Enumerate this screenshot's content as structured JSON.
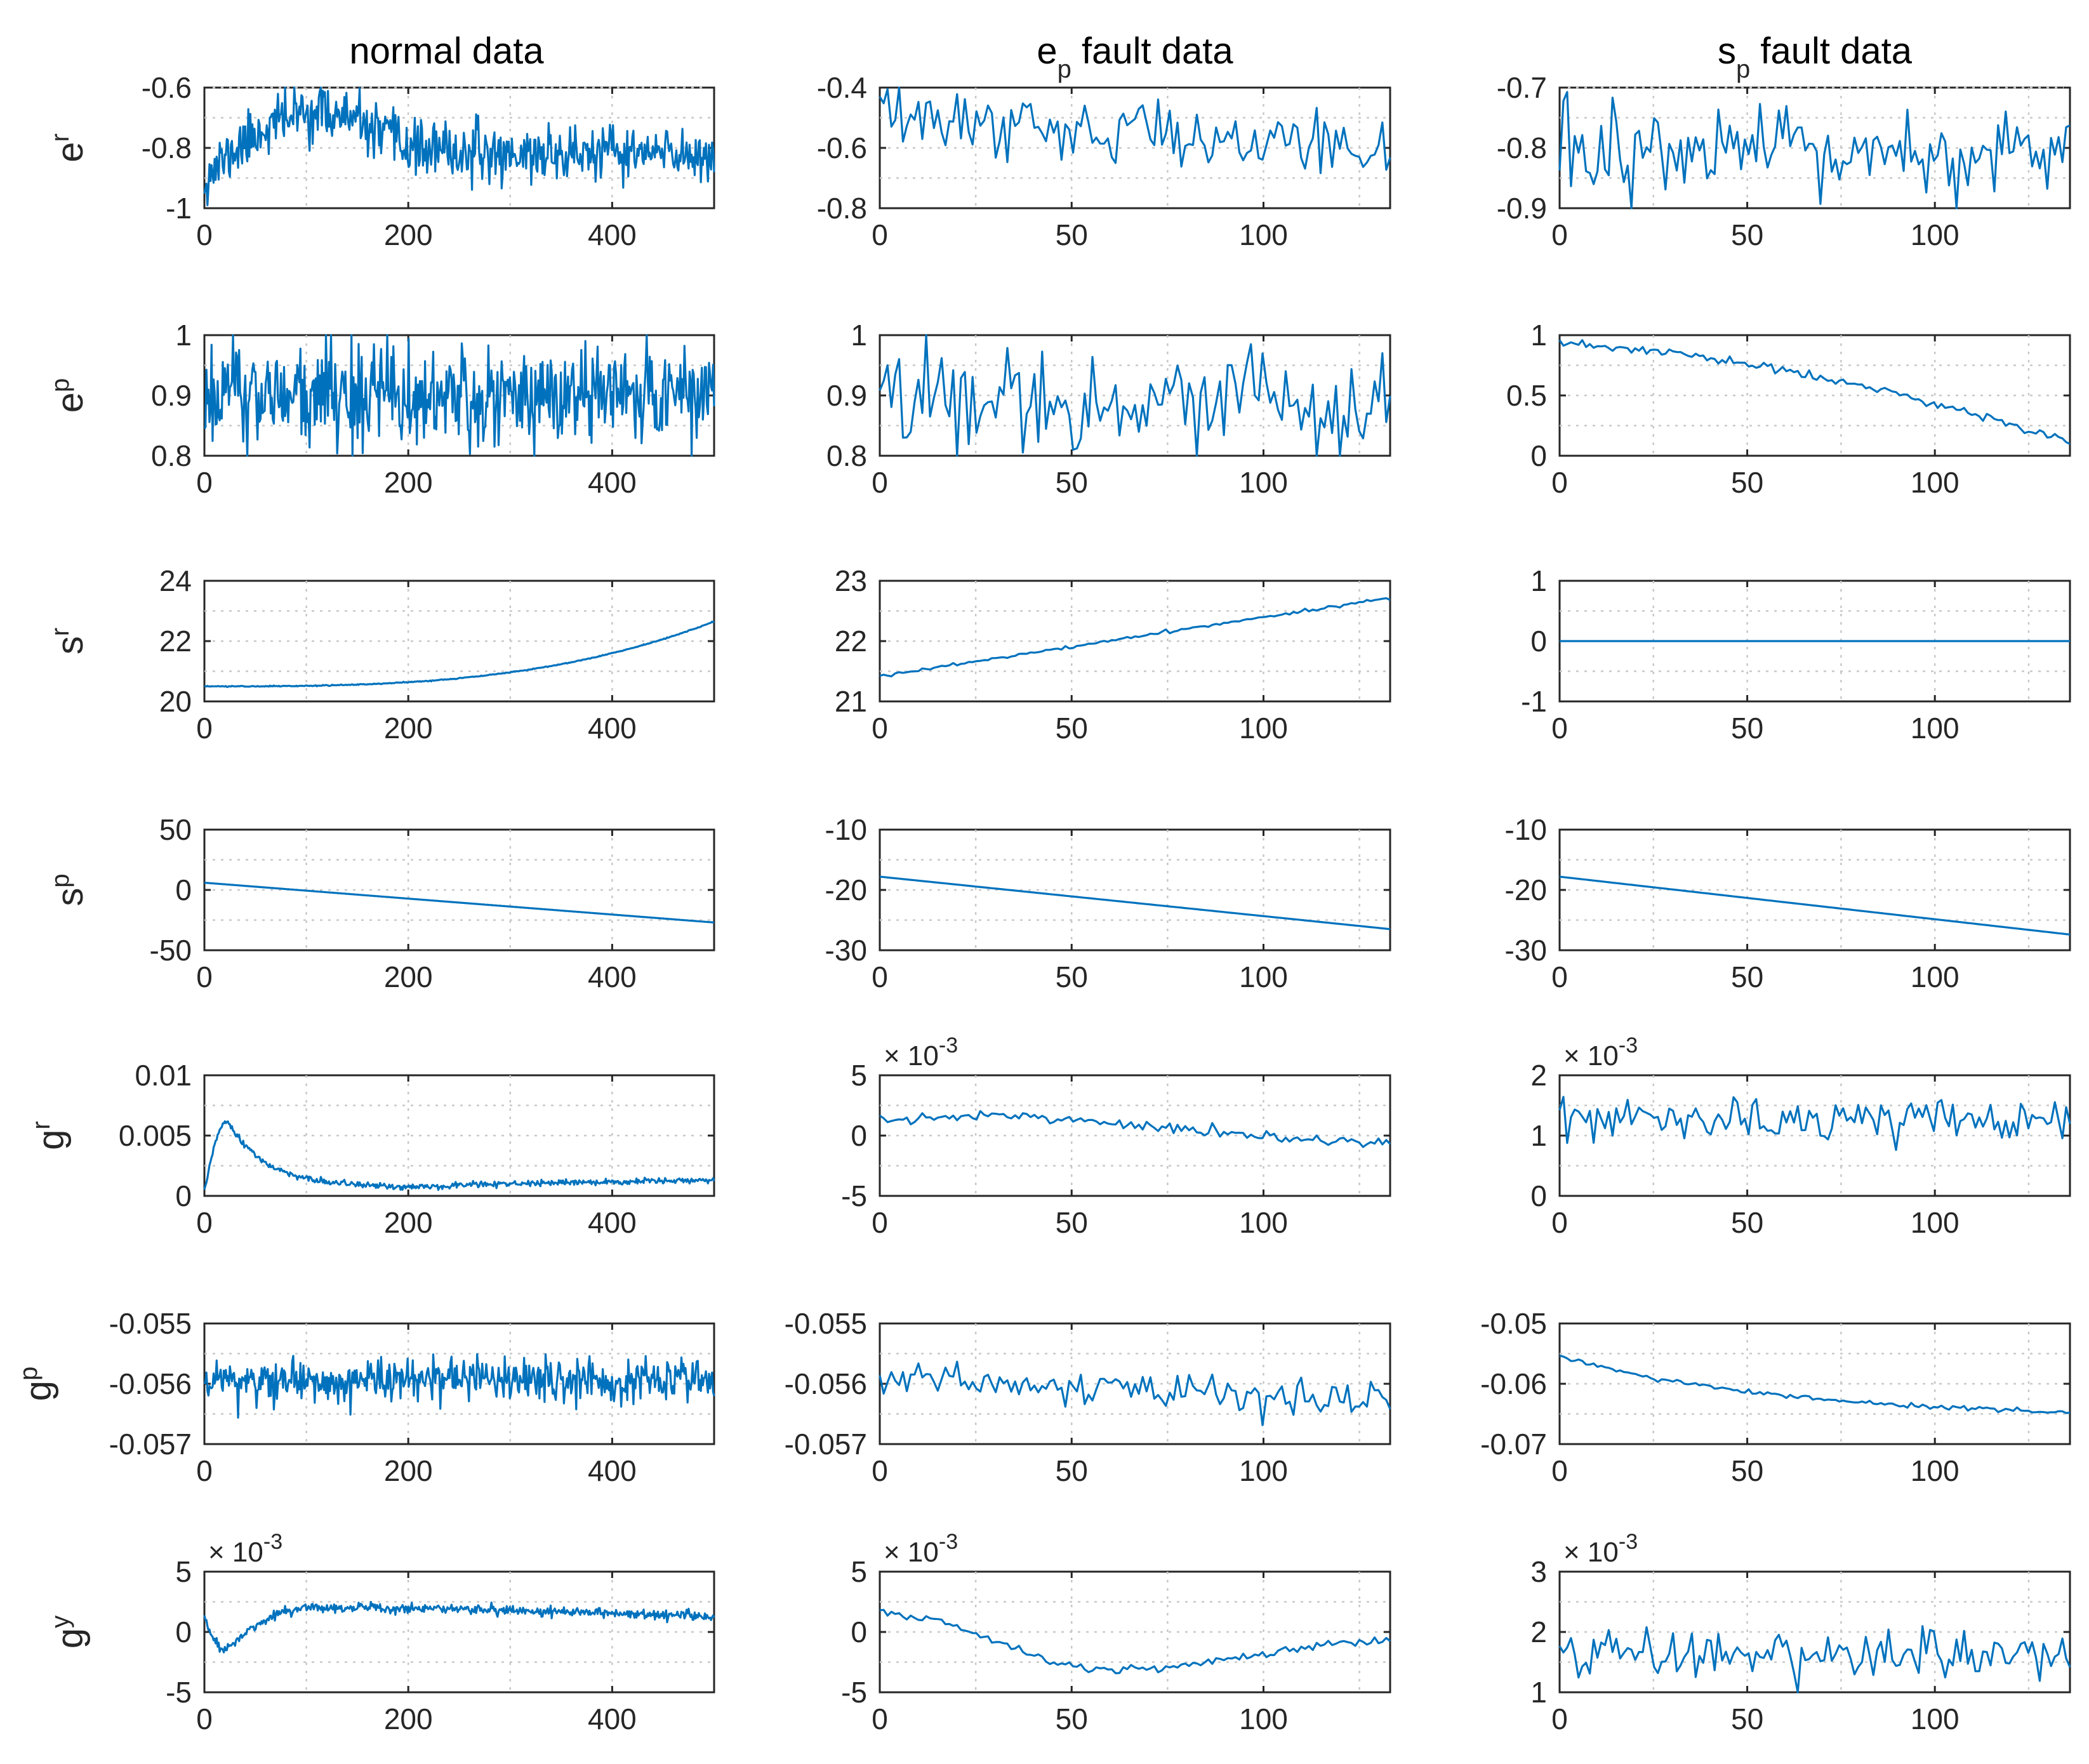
{
  "colors": {
    "line": "#0072bd",
    "axes": "#262626",
    "grid": "#c8c8c8"
  },
  "columns": [
    {
      "id": "normal",
      "title_main": "normal data",
      "title_sub": "",
      "title_rest": ""
    },
    {
      "id": "ep_fault",
      "title_main": "e",
      "title_sub": "p",
      "title_rest": " fault data"
    },
    {
      "id": "sp_fault",
      "title_main": "s",
      "title_sub": "p",
      "title_rest": " fault data"
    }
  ],
  "rows": [
    {
      "var_main": "e",
      "var_sub": "r"
    },
    {
      "var_main": "e",
      "var_sub": "p"
    },
    {
      "var_main": "s",
      "var_sub": "r"
    },
    {
      "var_main": "s",
      "var_sub": "p"
    },
    {
      "var_main": "g",
      "var_sub": "r"
    },
    {
      "var_main": "g",
      "var_sub": "p"
    },
    {
      "var_main": "g",
      "var_sub": "y"
    }
  ],
  "chart_data": [
    {
      "type": "line",
      "row": 0,
      "col": 0,
      "xlim": [
        0,
        500
      ],
      "xticks": [
        "0",
        "200",
        "400"
      ],
      "xtick_values": [
        0,
        200,
        400
      ],
      "ylim": [
        -1,
        -0.6
      ],
      "yticks": [
        "-1",
        "-0.8",
        "-0.6"
      ],
      "ytick_values": [
        -1,
        -0.8,
        -0.6
      ],
      "exponent": "",
      "gen": {
        "n": 500,
        "kind": "hump",
        "base": -0.82,
        "start": -0.9,
        "peak": -0.68,
        "peak_x": 110,
        "width": 70,
        "noise": 0.045,
        "seed": 11
      }
    },
    {
      "type": "line",
      "row": 0,
      "col": 1,
      "xlim": [
        0,
        133
      ],
      "xticks": [
        "0",
        "50",
        "100"
      ],
      "xtick_values": [
        0,
        50,
        100
      ],
      "ylim": [
        -0.8,
        -0.4
      ],
      "yticks": [
        "-0.8",
        "-0.6",
        "-0.4"
      ],
      "ytick_values": [
        -0.8,
        -0.6,
        -0.4
      ],
      "exponent": "",
      "gen": {
        "n": 133,
        "kind": "linear",
        "start": -0.5,
        "end": -0.6,
        "noise": 0.05,
        "seed": 12
      }
    },
    {
      "type": "line",
      "row": 0,
      "col": 2,
      "xlim": [
        0,
        136
      ],
      "xticks": [
        "0",
        "50",
        "100"
      ],
      "xtick_values": [
        0,
        50,
        100
      ],
      "ylim": [
        -0.9,
        -0.7
      ],
      "yticks": [
        "-0.9",
        "-0.8",
        "-0.7"
      ],
      "ytick_values": [
        -0.9,
        -0.8,
        -0.7
      ],
      "exponent": "",
      "gen": {
        "n": 136,
        "kind": "linear",
        "start": -0.81,
        "end": -0.815,
        "noise": 0.04,
        "seed": 13
      }
    },
    {
      "type": "line",
      "row": 1,
      "col": 0,
      "xlim": [
        0,
        500
      ],
      "xticks": [
        "0",
        "200",
        "400"
      ],
      "xtick_values": [
        0,
        200,
        400
      ],
      "ylim": [
        0.8,
        1
      ],
      "yticks": [
        "0.8",
        "0.9",
        "1"
      ],
      "ytick_values": [
        0.8,
        0.9,
        1
      ],
      "exponent": "",
      "gen": {
        "n": 500,
        "kind": "linear",
        "start": 0.9,
        "end": 0.9,
        "noise": 0.045,
        "seed": 21
      }
    },
    {
      "type": "line",
      "row": 1,
      "col": 1,
      "xlim": [
        0,
        133
      ],
      "xticks": [
        "0",
        "50",
        "100"
      ],
      "xtick_values": [
        0,
        50,
        100
      ],
      "ylim": [
        0.8,
        1
      ],
      "yticks": [
        "0.8",
        "0.9",
        "1"
      ],
      "ytick_values": [
        0.8,
        0.9,
        1
      ],
      "exponent": "",
      "gen": {
        "n": 133,
        "kind": "linear",
        "start": 0.905,
        "end": 0.88,
        "noise": 0.04,
        "seed": 22
      }
    },
    {
      "type": "line",
      "row": 1,
      "col": 2,
      "xlim": [
        0,
        136
      ],
      "xticks": [
        "0",
        "50",
        "100"
      ],
      "xtick_values": [
        0,
        50,
        100
      ],
      "ylim": [
        0,
        1
      ],
      "yticks": [
        "0",
        "0.5",
        "1"
      ],
      "ytick_values": [
        0,
        0.5,
        1
      ],
      "exponent": "",
      "gen": {
        "n": 136,
        "kind": "power",
        "start": 0.92,
        "end": 0.12,
        "power": 1.6,
        "noise": 0.02,
        "seed": 23
      }
    },
    {
      "type": "line",
      "row": 2,
      "col": 0,
      "xlim": [
        0,
        500
      ],
      "xticks": [
        "0",
        "200",
        "400"
      ],
      "xtick_values": [
        0,
        200,
        400
      ],
      "ylim": [
        20,
        24
      ],
      "yticks": [
        "20",
        "22",
        "24"
      ],
      "ytick_values": [
        20,
        22,
        24
      ],
      "exponent": "",
      "gen": {
        "n": 500,
        "kind": "power",
        "start": 20.5,
        "end": 22.65,
        "power": 3,
        "noise": 0.008,
        "seed": 31
      }
    },
    {
      "type": "line",
      "row": 2,
      "col": 1,
      "xlim": [
        0,
        133
      ],
      "xticks": [
        "0",
        "50",
        "100"
      ],
      "xtick_values": [
        0,
        50,
        100
      ],
      "ylim": [
        21,
        23
      ],
      "yticks": [
        "21",
        "22",
        "23"
      ],
      "ytick_values": [
        21,
        22,
        23
      ],
      "exponent": "",
      "gen": {
        "n": 133,
        "kind": "linear",
        "start": 21.42,
        "end": 22.72,
        "noise": 0.012,
        "seed": 32
      }
    },
    {
      "type": "line",
      "row": 2,
      "col": 2,
      "xlim": [
        0,
        136
      ],
      "xticks": [
        "0",
        "50",
        "100"
      ],
      "xtick_values": [
        0,
        50,
        100
      ],
      "ylim": [
        -1,
        1
      ],
      "yticks": [
        "-1",
        "0",
        "1"
      ],
      "ytick_values": [
        -1,
        0,
        1
      ],
      "exponent": "",
      "gen": {
        "n": 136,
        "kind": "linear",
        "start": 0,
        "end": 0,
        "noise": 0,
        "seed": 33
      }
    },
    {
      "type": "line",
      "row": 3,
      "col": 0,
      "xlim": [
        0,
        500
      ],
      "xticks": [
        "0",
        "200",
        "400"
      ],
      "xtick_values": [
        0,
        200,
        400
      ],
      "ylim": [
        -50,
        50
      ],
      "yticks": [
        "-50",
        "0",
        "50"
      ],
      "ytick_values": [
        -50,
        0,
        50
      ],
      "exponent": "",
      "gen": {
        "n": 500,
        "kind": "linear",
        "start": 6,
        "end": -27,
        "noise": 0,
        "seed": 41
      }
    },
    {
      "type": "line",
      "row": 3,
      "col": 1,
      "xlim": [
        0,
        133
      ],
      "xticks": [
        "0",
        "50",
        "100"
      ],
      "xtick_values": [
        0,
        50,
        100
      ],
      "ylim": [
        -30,
        -10
      ],
      "yticks": [
        "-30",
        "-20",
        "-10"
      ],
      "ytick_values": [
        -30,
        -20,
        -10
      ],
      "exponent": "",
      "gen": {
        "n": 133,
        "kind": "linear",
        "start": -17.8,
        "end": -26.5,
        "noise": 0,
        "seed": 42
      }
    },
    {
      "type": "line",
      "row": 3,
      "col": 2,
      "xlim": [
        0,
        136
      ],
      "xticks": [
        "0",
        "50",
        "100"
      ],
      "xtick_values": [
        0,
        50,
        100
      ],
      "ylim": [
        -30,
        -10
      ],
      "yticks": [
        "-30",
        "-20",
        "-10"
      ],
      "ytick_values": [
        -30,
        -20,
        -10
      ],
      "exponent": "",
      "gen": {
        "n": 136,
        "kind": "linear",
        "start": -17.8,
        "end": -27.4,
        "noise": 0,
        "seed": 43
      }
    },
    {
      "type": "line",
      "row": 4,
      "col": 0,
      "xlim": [
        0,
        500
      ],
      "xticks": [
        "0",
        "200",
        "400"
      ],
      "xtick_values": [
        0,
        200,
        400
      ],
      "ylim": [
        0,
        0.01
      ],
      "yticks": [
        "0",
        "0.005",
        "0.01"
      ],
      "ytick_values": [
        0,
        0.005,
        0.01
      ],
      "exponent": "",
      "gen": {
        "n": 500,
        "kind": "pulse",
        "base": 0.00075,
        "end": 0.0013,
        "start": 0.0003,
        "peak": 0.0062,
        "peak_x": 22,
        "rise": 8,
        "decay": 38,
        "noise": 0.00012,
        "seed": 51
      }
    },
    {
      "type": "line",
      "row": 4,
      "col": 1,
      "xlim": [
        0,
        133
      ],
      "xticks": [
        "0",
        "50",
        "100"
      ],
      "xtick_values": [
        0,
        50,
        100
      ],
      "ylim": [
        -5,
        5
      ],
      "yticks": [
        "-5",
        "0",
        "5"
      ],
      "ytick_values": [
        -5,
        0,
        5
      ],
      "exponent": "-3",
      "gen": {
        "n": 133,
        "kind": "bend",
        "start": 1.3,
        "mid": 1.8,
        "mid_x": 30,
        "end": -0.8,
        "noise": 0.2,
        "seed": 52
      }
    },
    {
      "type": "line",
      "row": 4,
      "col": 2,
      "xlim": [
        0,
        136
      ],
      "xticks": [
        "0",
        "50",
        "100"
      ],
      "xtick_values": [
        0,
        50,
        100
      ],
      "ylim": [
        0,
        2
      ],
      "yticks": [
        "0",
        "1",
        "2"
      ],
      "ytick_values": [
        0,
        1,
        2
      ],
      "exponent": "-3",
      "gen": {
        "n": 136,
        "kind": "linear",
        "start": 1.25,
        "end": 1.25,
        "noise": 0.17,
        "seed": 53
      }
    },
    {
      "type": "line",
      "row": 5,
      "col": 0,
      "xlim": [
        0,
        500
      ],
      "xticks": [
        "0",
        "200",
        "400"
      ],
      "xtick_values": [
        0,
        200,
        400
      ],
      "ylim": [
        -0.057,
        -0.055
      ],
      "yticks": [
        "-0.057",
        "-0.056",
        "-0.055"
      ],
      "ytick_values": [
        -0.057,
        -0.056,
        -0.055
      ],
      "exponent": "",
      "gen": {
        "n": 500,
        "kind": "linear",
        "start": -0.05595,
        "end": -0.05595,
        "noise": 0.00018,
        "seed": 61
      }
    },
    {
      "type": "line",
      "row": 5,
      "col": 1,
      "xlim": [
        0,
        133
      ],
      "xticks": [
        "0",
        "50",
        "100"
      ],
      "xtick_values": [
        0,
        50,
        100
      ],
      "ylim": [
        -0.057,
        -0.055
      ],
      "yticks": [
        "-0.057",
        "-0.056",
        "-0.055"
      ],
      "ytick_values": [
        -0.057,
        -0.056,
        -0.055
      ],
      "exponent": "",
      "gen": {
        "n": 133,
        "kind": "linear",
        "start": -0.0559,
        "end": -0.0563,
        "noise": 0.00016,
        "seed": 62
      }
    },
    {
      "type": "line",
      "row": 5,
      "col": 2,
      "xlim": [
        0,
        136
      ],
      "xticks": [
        "0",
        "50",
        "100"
      ],
      "xtick_values": [
        0,
        50,
        100
      ],
      "ylim": [
        -0.07,
        -0.05
      ],
      "yticks": [
        "-0.07",
        "-0.06",
        "-0.05"
      ],
      "ytick_values": [
        -0.07,
        -0.06,
        -0.05
      ],
      "exponent": "",
      "gen": {
        "n": 136,
        "kind": "decay",
        "start": -0.0556,
        "end": -0.0658,
        "rate": 2.2,
        "noise": 0.00018,
        "seed": 63
      }
    },
    {
      "type": "line",
      "row": 6,
      "col": 0,
      "xlim": [
        0,
        500
      ],
      "xticks": [
        "0",
        "200",
        "400"
      ],
      "xtick_values": [
        0,
        200,
        400
      ],
      "ylim": [
        -5,
        5
      ],
      "yticks": [
        "-5",
        "0",
        "5"
      ],
      "ytick_values": [
        -5,
        0,
        5
      ],
      "exponent": "-3",
      "gen": {
        "n": 500,
        "kind": "dip",
        "start": 1.3,
        "trough": -1.5,
        "trough_x": 20,
        "plateau": 2.0,
        "plateau_x": 100,
        "end": 1.2,
        "noise": 0.2,
        "seed": 71
      }
    },
    {
      "type": "line",
      "row": 6,
      "col": 1,
      "xlim": [
        0,
        133
      ],
      "xticks": [
        "0",
        "50",
        "100"
      ],
      "xtick_values": [
        0,
        50,
        100
      ],
      "ylim": [
        -5,
        5
      ],
      "yticks": [
        "-5",
        "0",
        "5"
      ],
      "ytick_values": [
        -5,
        0,
        5
      ],
      "exponent": "-3",
      "gen": {
        "n": 133,
        "kind": "valley",
        "start": 1.6,
        "trough": -3.2,
        "trough_x": 60,
        "end": -0.8,
        "noise": 0.2,
        "seed": 72
      }
    },
    {
      "type": "line",
      "row": 6,
      "col": 2,
      "xlim": [
        0,
        136
      ],
      "xticks": [
        "0",
        "50",
        "100"
      ],
      "xtick_values": [
        0,
        50,
        100
      ],
      "ylim": [
        1,
        3
      ],
      "yticks": [
        "1",
        "2",
        "3"
      ],
      "ytick_values": [
        1,
        2,
        3
      ],
      "exponent": "-3",
      "gen": {
        "n": 136,
        "kind": "linear",
        "start": 1.65,
        "end": 1.62,
        "noise": 0.2,
        "seed": 73
      }
    }
  ]
}
